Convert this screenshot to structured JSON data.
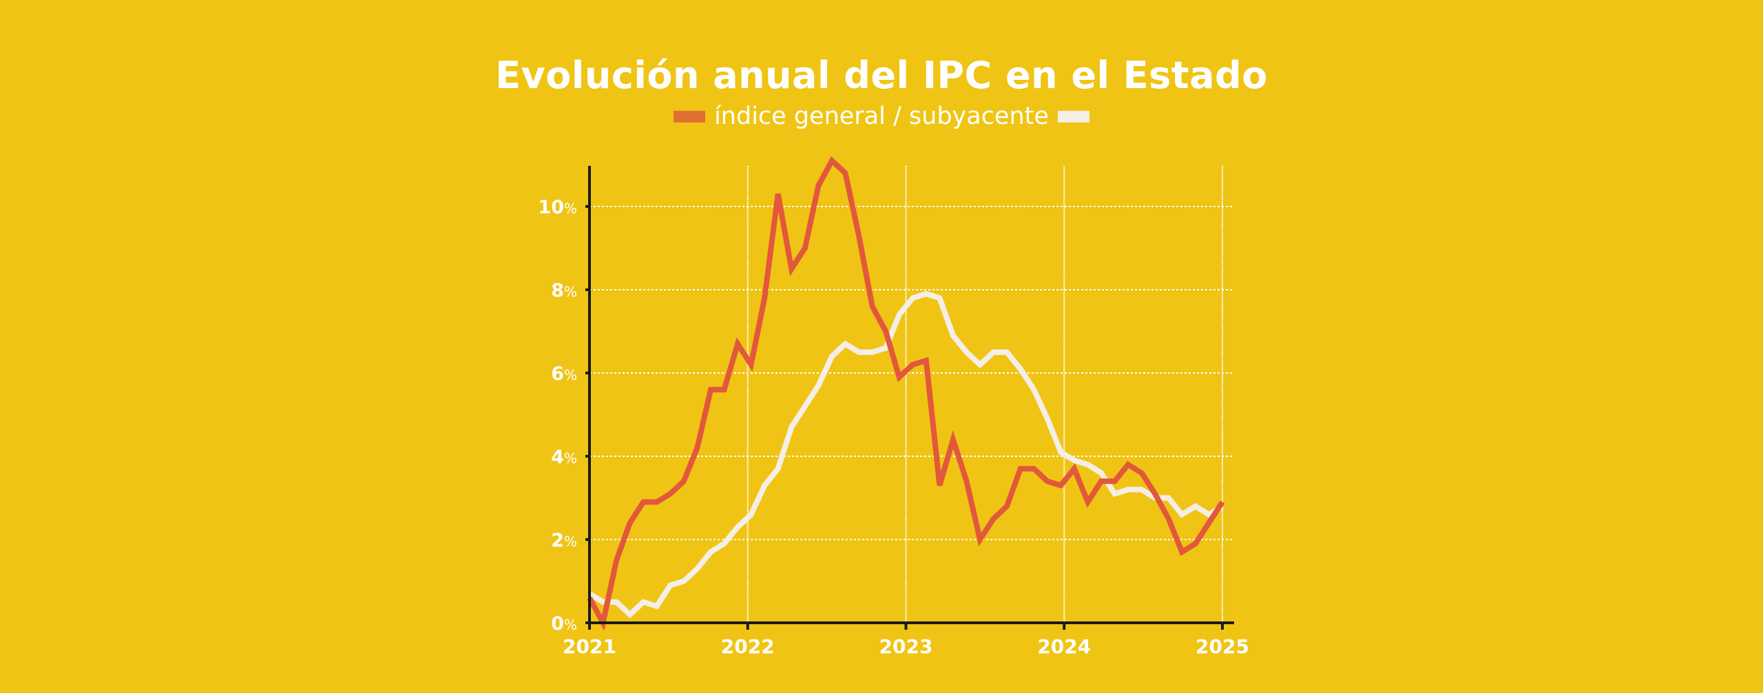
{
  "chart_data": {
    "type": "line",
    "title": "Evolución anual del IPC en el Estado",
    "legend": {
      "text": "índice general / subyacente",
      "placement": "top-center",
      "entries": [
        {
          "name": "índice general",
          "color": "#E07032"
        },
        {
          "name": "subyacente",
          "color": "#F4EEE6"
        }
      ]
    },
    "xlabel": "",
    "ylabel": "",
    "x_ticks": [
      "2021",
      "2022",
      "2023",
      "2024",
      "2025"
    ],
    "xlim": [
      "2021-01",
      "2024-12"
    ],
    "y_ticks": [
      {
        "value": 0,
        "num": "0",
        "unit": "%"
      },
      {
        "value": 2,
        "num": "2",
        "unit": "%"
      },
      {
        "value": 4,
        "num": "4",
        "unit": "%"
      },
      {
        "value": 6,
        "num": "6",
        "unit": "%"
      },
      {
        "value": 8,
        "num": "8",
        "unit": "%"
      },
      {
        "value": 10,
        "num": "10",
        "unit": "%"
      }
    ],
    "ylim": [
      0,
      11
    ],
    "grid": true,
    "x": [
      "2021-01",
      "2021-02",
      "2021-03",
      "2021-04",
      "2021-05",
      "2021-06",
      "2021-07",
      "2021-08",
      "2021-09",
      "2021-10",
      "2021-11",
      "2021-12",
      "2022-01",
      "2022-02",
      "2022-03",
      "2022-04",
      "2022-05",
      "2022-06",
      "2022-07",
      "2022-08",
      "2022-09",
      "2022-10",
      "2022-11",
      "2022-12",
      "2023-01",
      "2023-02",
      "2023-03",
      "2023-04",
      "2023-05",
      "2023-06",
      "2023-07",
      "2023-08",
      "2023-09",
      "2023-10",
      "2023-11",
      "2023-12",
      "2024-01",
      "2024-02",
      "2024-03",
      "2024-04",
      "2024-05",
      "2024-06",
      "2024-07",
      "2024-08",
      "2024-09",
      "2024-10",
      "2024-11",
      "2024-12"
    ],
    "series": [
      {
        "name": "índice general",
        "color": "#E2583A",
        "values": [
          0.6,
          0.0,
          1.5,
          2.4,
          2.9,
          2.9,
          3.1,
          3.4,
          4.2,
          5.6,
          5.6,
          6.7,
          6.2,
          7.8,
          10.3,
          8.5,
          9.0,
          10.5,
          11.1,
          10.8,
          9.3,
          7.6,
          7.0,
          5.9,
          6.2,
          6.3,
          3.3,
          4.4,
          3.4,
          2.0,
          2.5,
          2.8,
          3.7,
          3.7,
          3.4,
          3.3,
          3.7,
          2.9,
          3.4,
          3.4,
          3.8,
          3.6,
          3.1,
          2.5,
          1.7,
          1.9,
          2.4,
          2.9
        ]
      },
      {
        "name": "subyacente",
        "color": "#F4EEE6",
        "values": [
          0.7,
          0.5,
          0.5,
          0.2,
          0.5,
          0.4,
          0.9,
          1.0,
          1.3,
          1.7,
          1.9,
          2.3,
          2.6,
          3.3,
          3.7,
          4.7,
          5.2,
          5.7,
          6.4,
          6.7,
          6.5,
          6.5,
          6.6,
          7.4,
          7.8,
          7.9,
          7.8,
          6.9,
          6.5,
          6.2,
          6.5,
          6.5,
          6.1,
          5.6,
          4.9,
          4.1,
          3.9,
          3.8,
          3.6,
          3.1,
          3.2,
          3.2,
          3.0,
          3.0,
          2.6,
          2.8,
          2.6,
          2.8
        ]
      }
    ]
  }
}
